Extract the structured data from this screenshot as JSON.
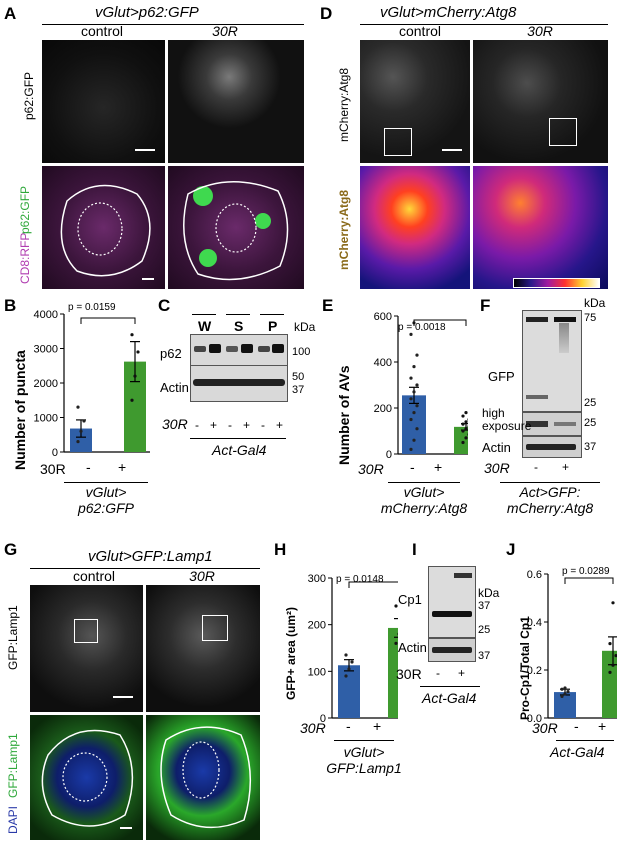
{
  "panels": {
    "A": {
      "letter": "A",
      "title": "vGlut>p62:GFP",
      "conditions": [
        "control",
        "30R"
      ],
      "ylabel_top": "p62:GFP",
      "ylabel_bottom_cd8": "CD8:RFP",
      "ylabel_bottom_p62": "p62:GFP"
    },
    "B": {
      "letter": "B",
      "ylabel": "Number of puncta",
      "pvalue": "p = 0.0159",
      "xlabel_30r": "30R",
      "x_minus": "-",
      "x_plus": "+",
      "genotype_line1": "vGlut>",
      "genotype_line2": "p62:GFP"
    },
    "C": {
      "letter": "C",
      "lanes": [
        "W",
        "S",
        "P"
      ],
      "kda": "kDa",
      "row1": "p62",
      "row2": "Actin",
      "markers": [
        "100",
        "50",
        "37"
      ],
      "signs": [
        "-",
        "+",
        "-",
        "+",
        "-",
        "+"
      ],
      "xlabel_30r": "30R",
      "driver": "Act-Gal4"
    },
    "D": {
      "letter": "D",
      "title": "vGlut>mCherry:Atg8",
      "conditions": [
        "control",
        "30R"
      ],
      "ylabel_top": "mCherry:Atg8",
      "ylabel_bottom": "mCherry:Atg8"
    },
    "E": {
      "letter": "E",
      "ylabel": "Number of AVs",
      "pvalue": "p = 0.0018",
      "xlabel_30r": "30R",
      "x_minus": "-",
      "x_plus": "+",
      "genotype_line1": "vGlut>",
      "genotype_line2": "mCherry:Atg8"
    },
    "F": {
      "letter": "F",
      "kda": "kDa",
      "row1": "GFP",
      "row2_line1": "high",
      "row2_line2": "exposure",
      "row3": "Actin",
      "markers_top": [
        "75",
        "25"
      ],
      "marker_mid": "25",
      "marker_bot": "37",
      "signs": [
        "-",
        "+"
      ],
      "xlabel_30r": "30R",
      "genotype_line1": "Act>GFP:",
      "genotype_line2": "mCherry:Atg8"
    },
    "G": {
      "letter": "G",
      "title": "vGlut>GFP:Lamp1",
      "conditions": [
        "control",
        "30R"
      ],
      "ylabel_top": "GFP:Lamp1",
      "ylabel_bottom_dapi": "DAPI",
      "ylabel_bottom_gfp": "GFP:Lamp1"
    },
    "H": {
      "letter": "H",
      "ylabel": "GFP+ area (um²)",
      "pvalue": "p = 0.0148",
      "xlabel_30r": "30R",
      "x_minus": "-",
      "x_plus": "+",
      "genotype_line1": "vGlut>",
      "genotype_line2": "GFP:Lamp1"
    },
    "I": {
      "letter": "I",
      "kda": "kDa",
      "row1": "Cp1",
      "row2": "Actin",
      "markers": [
        "37",
        "25",
        "37"
      ],
      "signs": [
        "-",
        "+"
      ],
      "xlabel_30r": "30R",
      "driver": "Act-Gal4"
    },
    "J": {
      "letter": "J",
      "ylabel": "Pro-Cp1/Total Cp1",
      "pvalue": "p = 0.0289",
      "xlabel_30r": "30R",
      "x_minus": "-",
      "x_plus": "+",
      "driver": "Act-Gal4"
    }
  },
  "chart_data": [
    {
      "panel": "B",
      "type": "bar",
      "categories": [
        "-",
        "+"
      ],
      "values": [
        680,
        2620
      ],
      "errors": [
        250,
        580
      ],
      "points": [
        [
          300,
          600,
          900,
          1300
        ],
        [
          1500,
          2200,
          2900,
          3400
        ]
      ],
      "ylim": [
        0,
        4000
      ],
      "yticks": [
        "0",
        "1000",
        "2000",
        "3000",
        "4000"
      ],
      "ylabel": "Number of puncta",
      "colors": [
        "#2f5fa7",
        "#3f9a2f"
      ],
      "pvalue": "p = 0.0159"
    },
    {
      "panel": "E",
      "type": "bar",
      "categories": [
        "-",
        "+"
      ],
      "values": [
        255,
        118
      ],
      "errors": [
        35,
        14
      ],
      "points": [
        [
          20,
          60,
          110,
          150,
          180,
          210,
          240,
          270,
          300,
          330,
          380,
          430,
          520,
          570
        ],
        [
          50,
          70,
          85,
          100,
          110,
          120,
          130,
          140,
          150,
          165,
          180
        ]
      ],
      "ylim": [
        0,
        600
      ],
      "yticks": [
        "0",
        "200",
        "400",
        "600"
      ],
      "ylabel": "Number of AVs",
      "colors": [
        "#2f5fa7",
        "#3f9a2f"
      ],
      "pvalue": "p = 0.0018"
    },
    {
      "panel": "H",
      "type": "bar",
      "categories": [
        "-",
        "+"
      ],
      "values": [
        113,
        193
      ],
      "errors": [
        12,
        20
      ],
      "points": [
        [
          90,
          105,
          120,
          135
        ],
        [
          160,
          180,
          205,
          240
        ]
      ],
      "ylim": [
        0,
        300
      ],
      "yticks": [
        "0",
        "100",
        "200",
        "300"
      ],
      "ylabel": "GFP+ area (um²)",
      "colors": [
        "#2f5fa7",
        "#3f9a2f"
      ],
      "pvalue": "p = 0.0148"
    },
    {
      "panel": "J",
      "type": "bar",
      "categories": [
        "-",
        "+"
      ],
      "values": [
        0.108,
        0.28
      ],
      "errors": [
        0.012,
        0.058
      ],
      "points": [
        [
          0.09,
          0.1,
          0.11,
          0.12,
          0.125
        ],
        [
          0.19,
          0.22,
          0.26,
          0.31,
          0.48
        ]
      ],
      "ylim": [
        0,
        0.6
      ],
      "yticks": [
        "0.0",
        "0.2",
        "0.4",
        "0.6"
      ],
      "ylabel": "Pro-Cp1/Total Cp1",
      "colors": [
        "#2f5fa7",
        "#3f9a2f"
      ],
      "pvalue": "p = 0.0289"
    }
  ]
}
